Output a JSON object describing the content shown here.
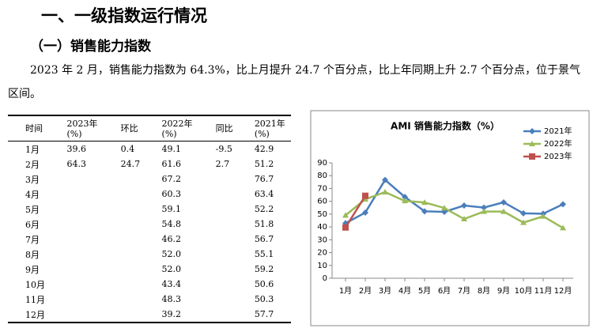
{
  "heading": "一、一级指数运行情况",
  "subheading": "（一）销售能力指数",
  "paragraph": "2023 年 2 月，销售能力指数为 64.3%，比上月提升 24.7 个百分点，比上年同期上升 2.7 个百分点，位于景气区间。",
  "table": {
    "headers": [
      [
        "时间"
      ],
      [
        "2023年",
        "(%)"
      ],
      [
        "环比"
      ],
      [
        "2022年",
        "(%)"
      ],
      [
        "同比"
      ],
      [
        "2021年",
        "(%)"
      ]
    ],
    "rows": [
      [
        "1月",
        "39.6",
        "0.4",
        "49.1",
        "-9.5",
        "42.9"
      ],
      [
        "2月",
        "64.3",
        "24.7",
        "61.6",
        "2.7",
        "51.2"
      ],
      [
        "3月",
        null,
        null,
        "67.2",
        null,
        "76.7"
      ],
      [
        "4月",
        null,
        null,
        "60.3",
        null,
        "63.4"
      ],
      [
        "5月",
        null,
        null,
        "59.1",
        null,
        "52.2"
      ],
      [
        "6月",
        null,
        null,
        "54.8",
        null,
        "51.8"
      ],
      [
        "7月",
        null,
        null,
        "46.2",
        null,
        "56.7"
      ],
      [
        "8月",
        null,
        null,
        "52.0",
        null,
        "55.1"
      ],
      [
        "9月",
        null,
        null,
        "52.0",
        null,
        "59.2"
      ],
      [
        "10月",
        null,
        null,
        "43.4",
        null,
        "50.6"
      ],
      [
        "11月",
        null,
        null,
        "48.3",
        null,
        "50.3"
      ],
      [
        "12月",
        null,
        null,
        "39.2",
        null,
        "57.7"
      ]
    ]
  },
  "chart_data": {
    "type": "line",
    "title": "AMI 销售能力指数（%）",
    "categories": [
      "1月",
      "2月",
      "3月",
      "4月",
      "5月",
      "6月",
      "7月",
      "8月",
      "9月",
      "10月",
      "11月",
      "12月"
    ],
    "series": [
      {
        "name": "2021年",
        "color": "#4a7ebb",
        "marker": "diamond",
        "values": [
          42.9,
          51.2,
          76.7,
          63.4,
          52.2,
          51.8,
          56.7,
          55.1,
          59.2,
          50.6,
          50.3,
          57.7
        ]
      },
      {
        "name": "2022年",
        "color": "#9bbb59",
        "marker": "triangle",
        "values": [
          49.1,
          61.6,
          67.2,
          60.3,
          59.1,
          54.8,
          46.2,
          52.0,
          52.0,
          43.4,
          48.3,
          39.2
        ]
      },
      {
        "name": "2023年",
        "color": "#c0504d",
        "marker": "square",
        "values": [
          39.6,
          64.3,
          null,
          null,
          null,
          null,
          null,
          null,
          null,
          null,
          null,
          null
        ]
      }
    ],
    "ylim": [
      0,
      90
    ],
    "yticks": [
      0,
      10,
      20,
      30,
      40,
      50,
      60,
      70,
      80,
      90
    ],
    "legend": "top-right"
  }
}
